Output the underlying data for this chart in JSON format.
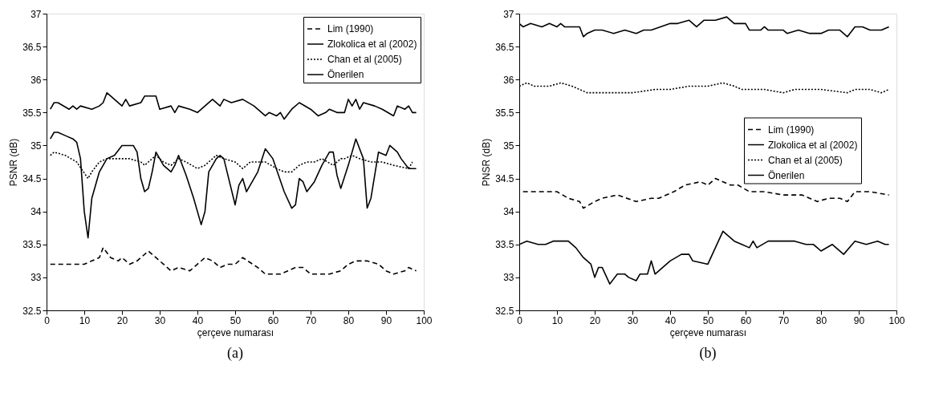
{
  "chart_data": [
    {
      "type": "line",
      "xlabel": "çerçeve numarası",
      "ylabel": "PSNR (dB)",
      "annotations": [
        "(a)"
      ],
      "xlim": [
        0,
        100
      ],
      "ylim": [
        32.5,
        37
      ],
      "xticks": [
        0,
        10,
        20,
        30,
        40,
        50,
        60,
        70,
        80,
        90,
        100
      ],
      "yticks": [
        32.5,
        33,
        33.5,
        34,
        34.5,
        35,
        35.5,
        36,
        36.5,
        37
      ],
      "grid": false,
      "legend": "top right",
      "marker": "none",
      "series": [
        {
          "name": "Lim (1990)",
          "color": "#000000",
          "line_style": "dashed",
          "x": [
            1,
            4,
            7,
            10,
            12,
            14,
            15,
            17,
            19,
            20,
            22,
            24,
            27,
            29,
            31,
            33,
            35,
            38,
            40,
            42,
            44,
            46,
            48,
            50,
            52,
            56,
            58,
            62,
            64,
            66,
            68,
            70,
            75,
            78,
            80,
            82,
            85,
            88,
            90,
            92,
            95,
            96,
            98
          ],
          "values": [
            33.2,
            33.2,
            33.2,
            33.2,
            33.25,
            33.3,
            33.45,
            33.3,
            33.25,
            33.3,
            33.2,
            33.25,
            33.4,
            33.3,
            33.2,
            33.1,
            33.15,
            33.1,
            33.2,
            33.3,
            33.25,
            33.15,
            33.2,
            33.2,
            33.3,
            33.15,
            33.05,
            33.05,
            33.1,
            33.15,
            33.15,
            33.05,
            33.05,
            33.1,
            33.2,
            33.25,
            33.25,
            33.2,
            33.1,
            33.05,
            33.1,
            33.15,
            33.1
          ]
        },
        {
          "name": "Zlokolica et al (2002)",
          "color": "#000000",
          "line_style": "solid",
          "x": [
            1,
            2,
            3,
            5,
            7,
            8,
            9,
            10,
            11,
            12,
            14,
            16,
            18,
            20,
            23,
            24,
            25,
            26,
            27,
            28,
            29,
            31,
            33,
            34,
            35,
            37,
            39,
            41,
            42,
            43,
            45,
            46,
            47,
            50,
            51,
            52,
            53,
            54,
            56,
            58,
            60,
            63,
            65,
            66,
            67,
            68,
            69,
            71,
            73,
            75,
            76,
            77,
            78,
            80,
            82,
            84,
            85,
            86,
            88,
            90,
            91,
            93,
            94,
            96,
            98
          ],
          "values": [
            35.1,
            35.2,
            35.2,
            35.15,
            35.1,
            35.05,
            34.8,
            34.0,
            33.6,
            34.2,
            34.6,
            34.8,
            34.85,
            35.0,
            35.0,
            34.9,
            34.5,
            34.3,
            34.35,
            34.6,
            34.9,
            34.7,
            34.6,
            34.7,
            34.85,
            34.55,
            34.2,
            33.8,
            34.0,
            34.6,
            34.8,
            34.85,
            34.8,
            34.1,
            34.4,
            34.5,
            34.3,
            34.4,
            34.6,
            34.95,
            34.8,
            34.3,
            34.05,
            34.1,
            34.5,
            34.45,
            34.3,
            34.45,
            34.7,
            34.9,
            34.9,
            34.55,
            34.35,
            34.7,
            35.1,
            34.8,
            34.05,
            34.2,
            34.9,
            34.85,
            35.0,
            34.9,
            34.8,
            34.65,
            34.65
          ]
        },
        {
          "name": "Chan et al (2005)",
          "color": "#000000",
          "line_style": "dotted",
          "x": [
            1,
            2,
            5,
            8,
            11,
            12,
            14,
            16,
            22,
            25,
            26,
            29,
            31,
            33,
            35,
            37,
            40,
            42,
            45,
            47,
            50,
            52,
            54,
            58,
            61,
            63,
            65,
            67,
            69,
            71,
            73,
            76,
            78,
            79,
            81,
            83,
            86,
            89,
            92,
            96,
            97
          ],
          "values": [
            34.85,
            34.9,
            34.85,
            34.75,
            34.5,
            34.6,
            34.75,
            34.8,
            34.8,
            34.75,
            34.7,
            34.85,
            34.75,
            34.7,
            34.8,
            34.75,
            34.65,
            34.7,
            34.85,
            34.8,
            34.75,
            34.65,
            34.75,
            34.75,
            34.65,
            34.6,
            34.6,
            34.7,
            34.75,
            34.75,
            34.8,
            34.7,
            34.8,
            34.8,
            34.85,
            34.8,
            34.75,
            34.75,
            34.7,
            34.65,
            34.75
          ]
        },
        {
          "name": "Önerilen",
          "color": "#000000",
          "line_style": "solid",
          "x": [
            1,
            2,
            3,
            6,
            7,
            8,
            9,
            12,
            14,
            15,
            16,
            18,
            20,
            21,
            22,
            25,
            26,
            29,
            30,
            33,
            34,
            35,
            38,
            40,
            42,
            44,
            46,
            47,
            49,
            52,
            55,
            58,
            59,
            61,
            62,
            63,
            65,
            67,
            70,
            72,
            74,
            75,
            77,
            79,
            80,
            81,
            82,
            83,
            84,
            87,
            89,
            92,
            93,
            95,
            96,
            97,
            98
          ],
          "values": [
            35.55,
            35.65,
            35.65,
            35.55,
            35.6,
            35.55,
            35.6,
            35.55,
            35.6,
            35.65,
            35.8,
            35.7,
            35.6,
            35.7,
            35.6,
            35.65,
            35.75,
            35.75,
            35.55,
            35.6,
            35.5,
            35.6,
            35.55,
            35.5,
            35.6,
            35.7,
            35.6,
            35.7,
            35.65,
            35.7,
            35.6,
            35.45,
            35.5,
            35.45,
            35.5,
            35.4,
            35.55,
            35.65,
            35.55,
            35.45,
            35.5,
            35.55,
            35.5,
            35.5,
            35.7,
            35.6,
            35.7,
            35.55,
            35.65,
            35.6,
            35.55,
            35.45,
            35.6,
            35.55,
            35.6,
            35.5,
            35.5
          ]
        }
      ]
    },
    {
      "type": "line",
      "xlabel": "çerçeve numarası",
      "ylabel": "PNSR (dB)",
      "annotations": [
        "(b)"
      ],
      "xlim": [
        0,
        100
      ],
      "ylim": [
        32.5,
        37
      ],
      "xticks": [
        0,
        10,
        20,
        30,
        40,
        50,
        60,
        70,
        80,
        90,
        100
      ],
      "yticks": [
        32.5,
        33,
        33.5,
        34,
        34.5,
        35,
        35.5,
        36,
        36.5,
        37
      ],
      "grid": false,
      "legend": "right",
      "marker": "none",
      "series": [
        {
          "name": "Lim (1990)",
          "color": "#000000",
          "line_style": "dashed",
          "x": [
            1,
            5,
            10,
            13,
            16,
            17,
            20,
            22,
            26,
            31,
            35,
            37,
            41,
            44,
            48,
            50,
            52,
            56,
            58,
            61,
            65,
            70,
            75,
            79,
            82,
            85,
            87,
            89,
            93,
            98
          ],
          "values": [
            34.3,
            34.3,
            34.3,
            34.2,
            34.15,
            34.05,
            34.15,
            34.2,
            34.25,
            34.15,
            34.2,
            34.2,
            34.3,
            34.4,
            34.45,
            34.4,
            34.5,
            34.4,
            34.4,
            34.3,
            34.3,
            34.25,
            34.25,
            34.15,
            34.2,
            34.2,
            34.15,
            34.3,
            34.3,
            34.25
          ]
        },
        {
          "name": "Zlokolica et al (2002)",
          "color": "#000000",
          "line_style": "solid",
          "x": [
            0,
            2,
            5,
            7,
            9,
            13,
            15,
            17,
            19,
            20,
            21,
            22,
            24,
            26,
            28,
            29,
            31,
            32,
            34,
            35,
            36,
            38,
            40,
            43,
            45,
            46,
            50,
            54,
            57,
            59,
            61,
            62,
            63,
            66,
            70,
            73,
            76,
            78,
            80,
            83,
            86,
            89,
            92,
            95,
            97,
            98
          ],
          "values": [
            33.5,
            33.55,
            33.5,
            33.5,
            33.55,
            33.55,
            33.45,
            33.3,
            33.2,
            33.0,
            33.15,
            33.15,
            32.9,
            33.05,
            33.05,
            33.0,
            32.95,
            33.05,
            33.05,
            33.25,
            33.05,
            33.15,
            33.25,
            33.35,
            33.35,
            33.25,
            33.2,
            33.7,
            33.55,
            33.5,
            33.45,
            33.55,
            33.45,
            33.55,
            33.55,
            33.55,
            33.5,
            33.5,
            33.4,
            33.5,
            33.35,
            33.55,
            33.5,
            33.55,
            33.5,
            33.5
          ]
        },
        {
          "name": "Chan et al (2005)",
          "color": "#000000",
          "line_style": "dotted",
          "x": [
            0,
            2,
            4,
            8,
            11,
            14,
            16,
            18,
            25,
            30,
            36,
            40,
            45,
            50,
            54,
            57,
            59,
            65,
            70,
            73,
            80,
            87,
            89,
            93,
            96,
            98
          ],
          "values": [
            35.9,
            35.95,
            35.9,
            35.9,
            35.95,
            35.9,
            35.85,
            35.8,
            35.8,
            35.8,
            35.85,
            35.85,
            35.9,
            35.9,
            35.95,
            35.9,
            35.85,
            35.85,
            35.8,
            35.85,
            35.85,
            35.8,
            35.85,
            35.85,
            35.8,
            35.85
          ]
        },
        {
          "name": "Önerilen",
          "color": "#000000",
          "line_style": "solid",
          "x": [
            0,
            1,
            3,
            6,
            8,
            10,
            11,
            12,
            16,
            17,
            18,
            20,
            22,
            25,
            28,
            31,
            33,
            35,
            40,
            42,
            45,
            47,
            49,
            52,
            55,
            57,
            60,
            61,
            64,
            65,
            66,
            70,
            71,
            74,
            77,
            80,
            82,
            85,
            87,
            89,
            91,
            93,
            96,
            98
          ],
          "values": [
            36.85,
            36.8,
            36.85,
            36.8,
            36.85,
            36.8,
            36.85,
            36.8,
            36.8,
            36.65,
            36.7,
            36.75,
            36.75,
            36.7,
            36.75,
            36.7,
            36.75,
            36.75,
            36.85,
            36.85,
            36.9,
            36.8,
            36.9,
            36.9,
            36.95,
            36.85,
            36.85,
            36.75,
            36.75,
            36.8,
            36.75,
            36.75,
            36.7,
            36.75,
            36.7,
            36.7,
            36.75,
            36.75,
            36.65,
            36.8,
            36.8,
            36.75,
            36.75,
            36.8
          ]
        }
      ]
    }
  ]
}
